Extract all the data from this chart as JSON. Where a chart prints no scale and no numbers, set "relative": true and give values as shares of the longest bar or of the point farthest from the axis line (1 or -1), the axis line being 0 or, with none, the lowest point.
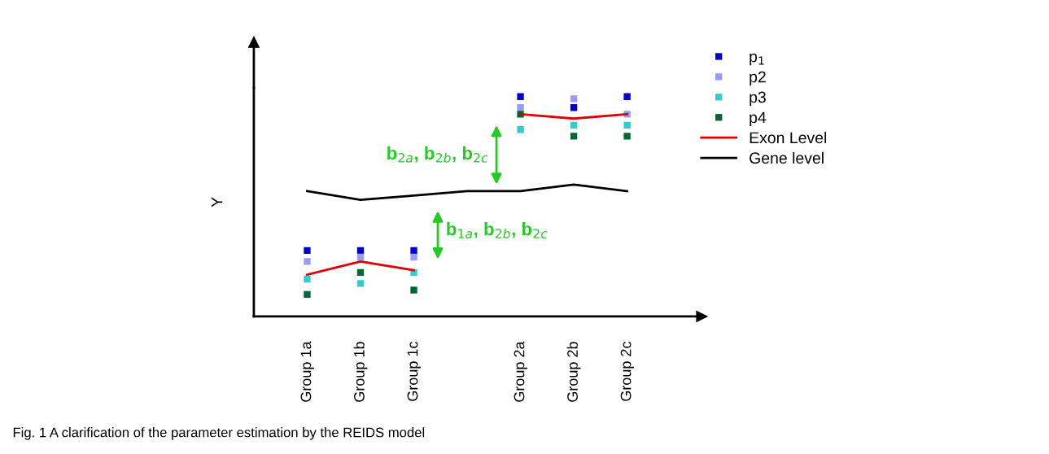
{
  "chart_data": {
    "type": "scatter",
    "relative": true,
    "ylabel": "Y",
    "categories": [
      "Group 1a",
      "Group 1b",
      "Group 1c",
      null,
      "Group 2a",
      "Group 2b",
      "Group 2c"
    ],
    "series": [
      {
        "name": "p$_{1}$",
        "color": "#0000cc",
        "marker": "square",
        "values": [
          0.3,
          0.3,
          0.3,
          null,
          1.0,
          0.95,
          1.0
        ]
      },
      {
        "name": "p2",
        "color": "#9999ff",
        "marker": "square",
        "values": [
          0.25,
          0.27,
          0.27,
          null,
          0.95,
          0.99,
          0.92
        ]
      },
      {
        "name": "p3",
        "color": "#33cccc",
        "marker": "square",
        "values": [
          0.17,
          0.15,
          0.2,
          null,
          0.85,
          0.87,
          0.87
        ]
      },
      {
        "name": "p4",
        "color": "#006633",
        "marker": "square",
        "values": [
          0.1,
          0.2,
          0.12,
          null,
          0.92,
          0.82,
          0.82
        ]
      },
      {
        "name": "Exon Level",
        "type": "line",
        "color": "#dd0000",
        "values": [
          0.19,
          0.25,
          0.21,
          null,
          0.92,
          0.9,
          0.92
        ]
      },
      {
        "name": "Gene level",
        "type": "line",
        "color": "#000000",
        "values": [
          0.57,
          0.53,
          0.55,
          0.57,
          0.57,
          0.6,
          0.57
        ]
      }
    ],
    "legend": "right",
    "annotations": [
      "b$_{2a}$, b$_{2b}$, b$_{2c}$",
      "b$_{1a}$, b$_{2b}$, b$_{2c}$",
      "Fig. 1 A clarification of the parameter estimation by the REIDS model"
    ]
  }
}
